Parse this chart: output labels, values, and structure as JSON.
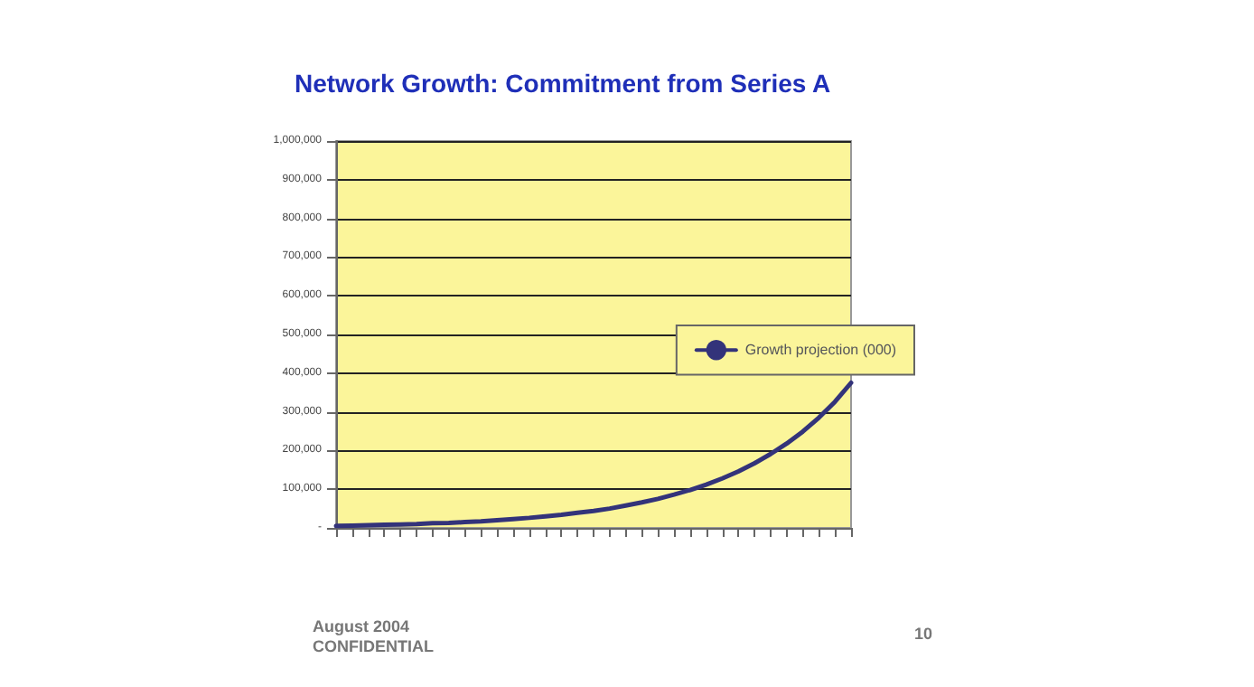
{
  "chart_data": {
    "type": "line",
    "title": "Network Growth: Commitment from Series A",
    "categories": [
      null,
      null,
      null,
      null,
      null,
      null,
      null,
      null,
      null,
      null,
      null,
      null,
      null,
      null,
      null,
      null,
      null,
      null,
      null,
      null,
      null,
      null,
      null,
      null,
      null,
      null,
      null,
      null,
      null,
      null,
      null,
      null,
      null
    ],
    "series": [
      {
        "name": "Growth projection (000)",
        "color": "#33337a",
        "values": [
          5000,
          6000,
          7000,
          8000,
          9000,
          10000,
          12000,
          13000,
          15000,
          17000,
          20000,
          23000,
          26000,
          30000,
          34000,
          39000,
          44000,
          50000,
          58000,
          66000,
          75000,
          86000,
          98000,
          112000,
          128000,
          146000,
          167000,
          191000,
          218000,
          249000,
          285000,
          326000,
          375000
        ]
      }
    ],
    "ylim": [
      0,
      1000000
    ],
    "yticks": [
      {
        "value": 0,
        "label": "-"
      },
      {
        "value": 100000,
        "label": "100,000"
      },
      {
        "value": 200000,
        "label": "200,000"
      },
      {
        "value": 300000,
        "label": "300,000"
      },
      {
        "value": 400000,
        "label": "400,000"
      },
      {
        "value": 500000,
        "label": "500,000"
      },
      {
        "value": 600000,
        "label": "600,000"
      },
      {
        "value": 700000,
        "label": "700,000"
      },
      {
        "value": 800000,
        "label": "800,000"
      },
      {
        "value": 900000,
        "label": "900,000"
      },
      {
        "value": 1000000,
        "label": "1,000,000"
      }
    ],
    "grid": "y",
    "legend": "right",
    "marker": "none",
    "line_style": "solid",
    "annotations": [
      "August 2004",
      "CONFIDENTIAL",
      "10"
    ]
  }
}
